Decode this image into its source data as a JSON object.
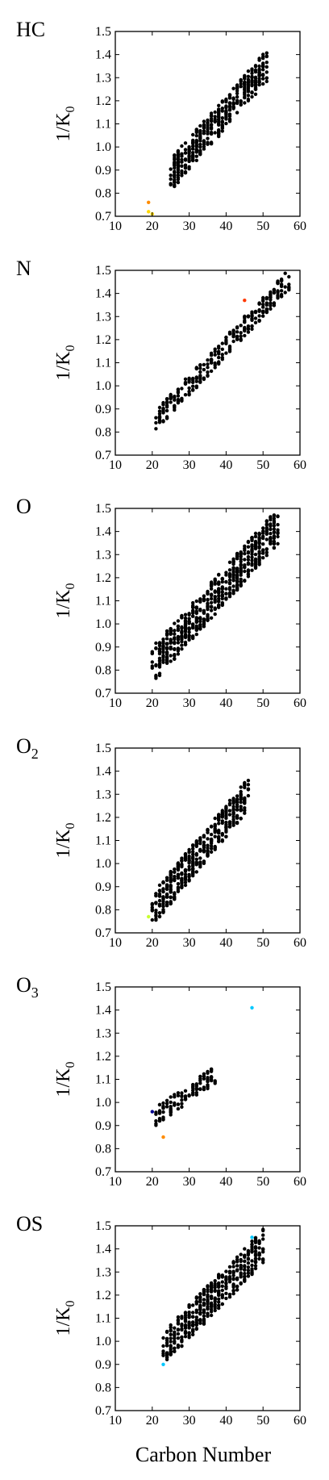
{
  "figure": {
    "xlabel": "Carbon Number",
    "ylabel_main": "1/K",
    "ylabel_sub": "0",
    "colors": [
      "#00008f",
      "#0050ff",
      "#00c8ff",
      "#50ffb0",
      "#c8ff30",
      "#ffd800",
      "#ff8c00",
      "#ff3800",
      "#d00000"
    ]
  },
  "chart_data": [
    {
      "type": "scatter",
      "title": "HC",
      "title_main": "HC",
      "title_sub": "",
      "xlim": [
        10,
        60
      ],
      "ylim": [
        0.7,
        1.5
      ],
      "x_ticks": [
        "10",
        "20",
        "30",
        "40",
        "50",
        "60"
      ],
      "y_ticks": [
        "0.7",
        "0.8",
        "0.9",
        "1.0",
        "1.1",
        "1.2",
        "1.3",
        "1.4",
        "1.5"
      ],
      "grid": false,
      "band": {
        "x0": 25,
        "x1": 51,
        "y0": 0.88,
        "y1": 1.35,
        "hw": 0.07
      },
      "bias": 0.65,
      "seed": 11,
      "count": 420,
      "extra_points": [
        {
          "x": 19,
          "y": 0.76,
          "color": "#ff8c00"
        },
        {
          "x": 19,
          "y": 0.72,
          "color": "#ffd800"
        },
        {
          "x": 20,
          "y": 0.71,
          "color": "#ffd800"
        }
      ]
    },
    {
      "type": "scatter",
      "title": "N",
      "title_main": "N",
      "title_sub": "",
      "xlim": [
        10,
        60
      ],
      "ylim": [
        0.7,
        1.5
      ],
      "x_ticks": [
        "10",
        "20",
        "30",
        "40",
        "50",
        "60"
      ],
      "y_ticks": [
        "0.7",
        "0.8",
        "0.9",
        "1.0",
        "1.1",
        "1.2",
        "1.3",
        "1.4",
        "1.5"
      ],
      "grid": false,
      "band": {
        "x0": 21,
        "x1": 57,
        "y0": 0.85,
        "y1": 1.46,
        "hw": 0.045
      },
      "bias": 0.45,
      "seed": 23,
      "count": 300,
      "extra_points": [
        {
          "x": 45,
          "y": 1.37,
          "color": "#ff3800"
        }
      ]
    },
    {
      "type": "scatter",
      "title": "O",
      "title_main": "O",
      "title_sub": "",
      "xlim": [
        10,
        60
      ],
      "ylim": [
        0.7,
        1.5
      ],
      "x_ticks": [
        "10",
        "20",
        "30",
        "40",
        "50",
        "60"
      ],
      "y_ticks": [
        "0.7",
        "0.8",
        "0.9",
        "1.0",
        "1.1",
        "1.2",
        "1.3",
        "1.4",
        "1.5"
      ],
      "grid": false,
      "band": {
        "x0": 20,
        "x1": 54,
        "y0": 0.82,
        "y1": 1.42,
        "hw": 0.08
      },
      "bias": 0.55,
      "seed": 37,
      "count": 600,
      "extra_points": []
    },
    {
      "type": "scatter",
      "title": "O2",
      "title_main": "O",
      "title_sub": "2",
      "xlim": [
        10,
        60
      ],
      "ylim": [
        0.7,
        1.5
      ],
      "x_ticks": [
        "10",
        "20",
        "30",
        "40",
        "50",
        "60"
      ],
      "y_ticks": [
        "0.7",
        "0.8",
        "0.9",
        "1.0",
        "1.1",
        "1.2",
        "1.3",
        "1.4",
        "1.5"
      ],
      "grid": false,
      "band": {
        "x0": 20,
        "x1": 46,
        "y0": 0.8,
        "y1": 1.3,
        "hw": 0.07
      },
      "bias": 0.6,
      "seed": 51,
      "count": 450,
      "extra_points": [
        {
          "x": 19,
          "y": 0.77,
          "color": "#c8ff30"
        }
      ]
    },
    {
      "type": "scatter",
      "title": "O3",
      "title_main": "O",
      "title_sub": "3",
      "xlim": [
        10,
        60
      ],
      "ylim": [
        0.7,
        1.5
      ],
      "x_ticks": [
        "10",
        "20",
        "30",
        "40",
        "50",
        "60"
      ],
      "y_ticks": [
        "0.7",
        "0.8",
        "0.9",
        "1.0",
        "1.1",
        "1.2",
        "1.3",
        "1.4",
        "1.5"
      ],
      "grid": false,
      "band": {
        "x0": 21,
        "x1": 37,
        "y0": 0.94,
        "y1": 1.12,
        "hw": 0.04
      },
      "bias": 0.5,
      "seed": 67,
      "count": 110,
      "extra_points": [
        {
          "x": 47,
          "y": 1.41,
          "color": "#00c8ff"
        },
        {
          "x": 23,
          "y": 0.85,
          "color": "#ff8c00"
        },
        {
          "x": 20,
          "y": 0.96,
          "color": "#00008f"
        }
      ]
    },
    {
      "type": "scatter",
      "title": "OS",
      "title_main": "OS",
      "title_sub": "",
      "xlim": [
        10,
        60
      ],
      "ylim": [
        0.7,
        1.5
      ],
      "x_ticks": [
        "10",
        "20",
        "30",
        "40",
        "50",
        "60"
      ],
      "y_ticks": [
        "0.7",
        "0.8",
        "0.9",
        "1.0",
        "1.1",
        "1.2",
        "1.3",
        "1.4",
        "1.5"
      ],
      "grid": false,
      "band": {
        "x0": 23,
        "x1": 50,
        "y0": 0.97,
        "y1": 1.41,
        "hw": 0.075
      },
      "bias": 0.3,
      "seed": 79,
      "count": 420,
      "extra_points": [
        {
          "x": 47,
          "y": 1.45,
          "color": "#00c8ff"
        },
        {
          "x": 23,
          "y": 0.9,
          "color": "#00c8ff"
        }
      ]
    }
  ]
}
